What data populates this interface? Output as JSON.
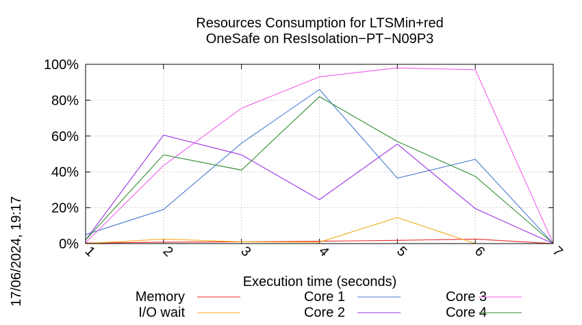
{
  "chart_data": {
    "type": "line",
    "title_lines": [
      "Resources Consumption for LTSMin+red",
      "OneSafe on ResIsolation−PT−N09P3"
    ],
    "xlabel": "Execution time (seconds)",
    "ylabel": "",
    "side_label": "17/06/2024, 19:17",
    "x": [
      1,
      2,
      3,
      4,
      5,
      6,
      7
    ],
    "xlim": [
      1,
      7
    ],
    "ylim": [
      0,
      100
    ],
    "x_ticks": [
      "1",
      "2",
      "3",
      "4",
      "5",
      "6",
      "7"
    ],
    "y_ticks": [
      {
        "value": 0,
        "label": "0%"
      },
      {
        "value": 20,
        "label": "20%"
      },
      {
        "value": 40,
        "label": "40%"
      },
      {
        "value": 60,
        "label": "60%"
      },
      {
        "value": 80,
        "label": "80%"
      },
      {
        "value": 100,
        "label": "100%"
      }
    ],
    "grid": true,
    "legend_position": "bottom",
    "series": [
      {
        "name": "Memory",
        "color": "#e8292a",
        "values": [
          0.3,
          0.8,
          1,
          1.3,
          1.8,
          2.5,
          0
        ]
      },
      {
        "name": "I/O wait",
        "color": "#f4a91c",
        "values": [
          0,
          2.5,
          1,
          0.8,
          14.5,
          0,
          0
        ]
      },
      {
        "name": "Core 1",
        "color": "#4a7ad0",
        "values": [
          5,
          19,
          56,
          86,
          36.5,
          47,
          0
        ]
      },
      {
        "name": "Core 2",
        "color": "#9a30e6",
        "values": [
          2,
          60.5,
          49.5,
          24.5,
          55.5,
          19.5,
          0
        ]
      },
      {
        "name": "Core 3",
        "color": "#f05ced",
        "values": [
          0.5,
          43.5,
          75.5,
          93,
          98,
          97,
          0
        ]
      },
      {
        "name": "Core 4",
        "color": "#2e8b2e",
        "values": [
          2,
          49.5,
          41,
          82,
          57,
          37.5,
          0
        ]
      }
    ]
  }
}
